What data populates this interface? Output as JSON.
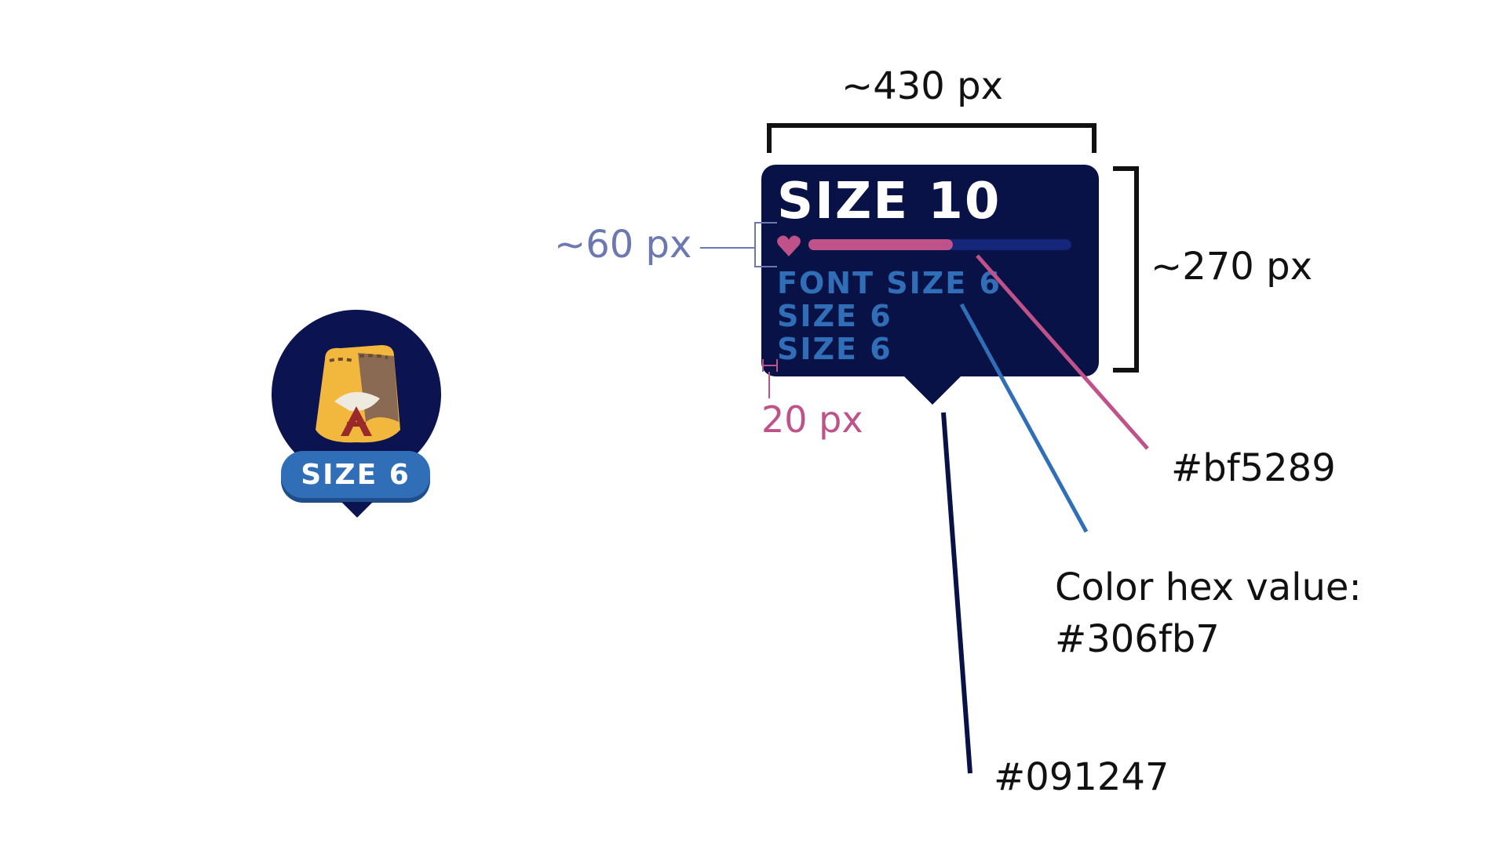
{
  "marker": {
    "label": "SIZE 6",
    "icon": "treasure-bag-icon"
  },
  "card": {
    "title": "SIZE 10",
    "health_fraction": 0.55,
    "lines": [
      "FONT SIZE 6",
      "SIZE 6",
      "SIZE 6"
    ],
    "icon": "heart-icon"
  },
  "annotations": {
    "width_label": "~430 px",
    "height_label": "~270 px",
    "bar_height_label": "~60 px",
    "padding_label": "20 px",
    "pink_hex": "#bf5289",
    "blue_hex_caption": "Color hex value:",
    "blue_hex": "#306fb7",
    "navy_hex": "#091247"
  },
  "colors": {
    "navy": "#091247",
    "blue": "#306fb7",
    "pink": "#bf5289"
  }
}
